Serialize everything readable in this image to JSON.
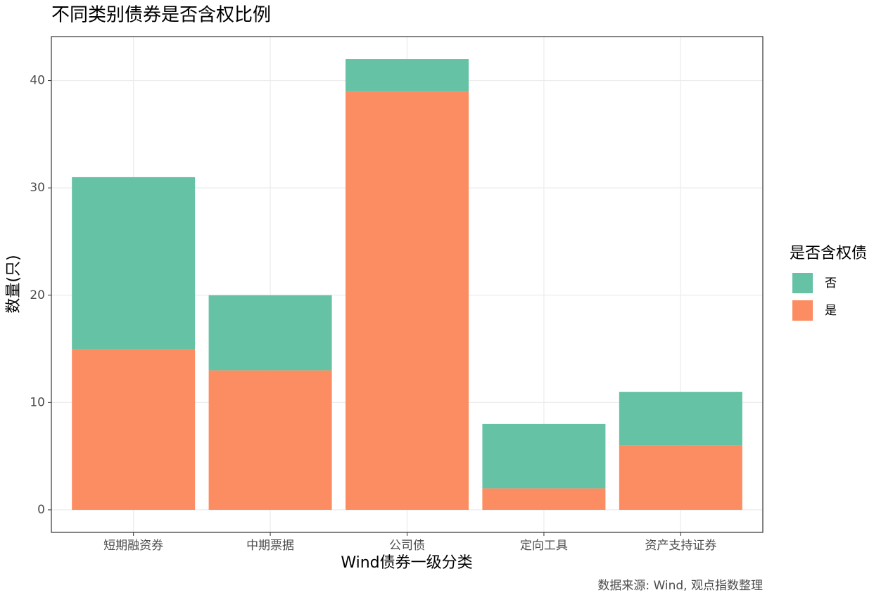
{
  "chart_data": {
    "type": "stacked_bar",
    "title": "不同类别债券是否含权比例",
    "x_label": "Wind债券一级分类",
    "y_label": "数量(只)",
    "caption": "数据来源: Wind, 观点指数整理",
    "legend_title": "是否含权债",
    "legend": "right",
    "grid": true,
    "categories": [
      "短期融资券",
      "中期票据",
      "公司债",
      "定向工具",
      "资产支持证券"
    ],
    "series": [
      {
        "name": "否",
        "color": "#66c2a5",
        "values": [
          16,
          7,
          3,
          6,
          5
        ]
      },
      {
        "name": "是",
        "color": "#fc8d62",
        "values": [
          15,
          13,
          39,
          2,
          6
        ]
      }
    ],
    "ylim": [
      -2.1,
      44.1
    ],
    "yticks": [
      0,
      10,
      20,
      30,
      40
    ]
  }
}
